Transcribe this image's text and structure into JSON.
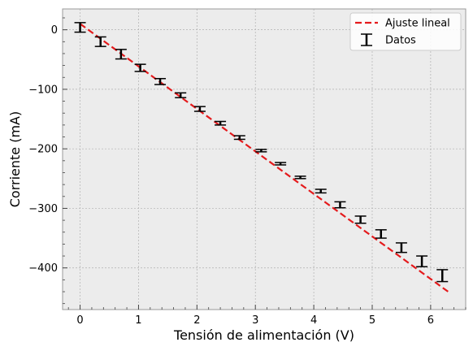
{
  "chart_data": {
    "type": "scatter",
    "xlabel": "Tensión de alimentación (V)",
    "ylabel": "Corriente (mA)",
    "xlim": [
      -0.3,
      6.6
    ],
    "ylim": [
      -470,
      35
    ],
    "xticks": [
      0,
      1,
      2,
      3,
      4,
      5,
      6
    ],
    "yticks": [
      0,
      -100,
      -200,
      -300,
      -400
    ],
    "grid": true,
    "legend_position": "top-right",
    "series": [
      {
        "name": "Datos",
        "style": "errorbar",
        "color": "#000000",
        "x": [
          0.0,
          0.35,
          0.7,
          1.03,
          1.37,
          1.72,
          2.05,
          2.4,
          2.73,
          3.1,
          3.43,
          3.77,
          4.12,
          4.45,
          4.8,
          5.15,
          5.5,
          5.85,
          6.2
        ],
        "y": [
          4,
          -20,
          -41,
          -64,
          -87,
          -110,
          -133,
          -157,
          -181,
          -203,
          -225,
          -248,
          -271,
          -294,
          -319,
          -343,
          -366,
          -389,
          -413
        ],
        "yerr": [
          8,
          8,
          8,
          6,
          5,
          4,
          4,
          3,
          3,
          2,
          2,
          2,
          3,
          5,
          6,
          7,
          8,
          9,
          10
        ]
      },
      {
        "name": "Ajuste lineal",
        "style": "dashed-line",
        "color": "#e41a1c",
        "x": [
          0.0,
          6.3
        ],
        "y": [
          10,
          -440
        ]
      }
    ]
  }
}
